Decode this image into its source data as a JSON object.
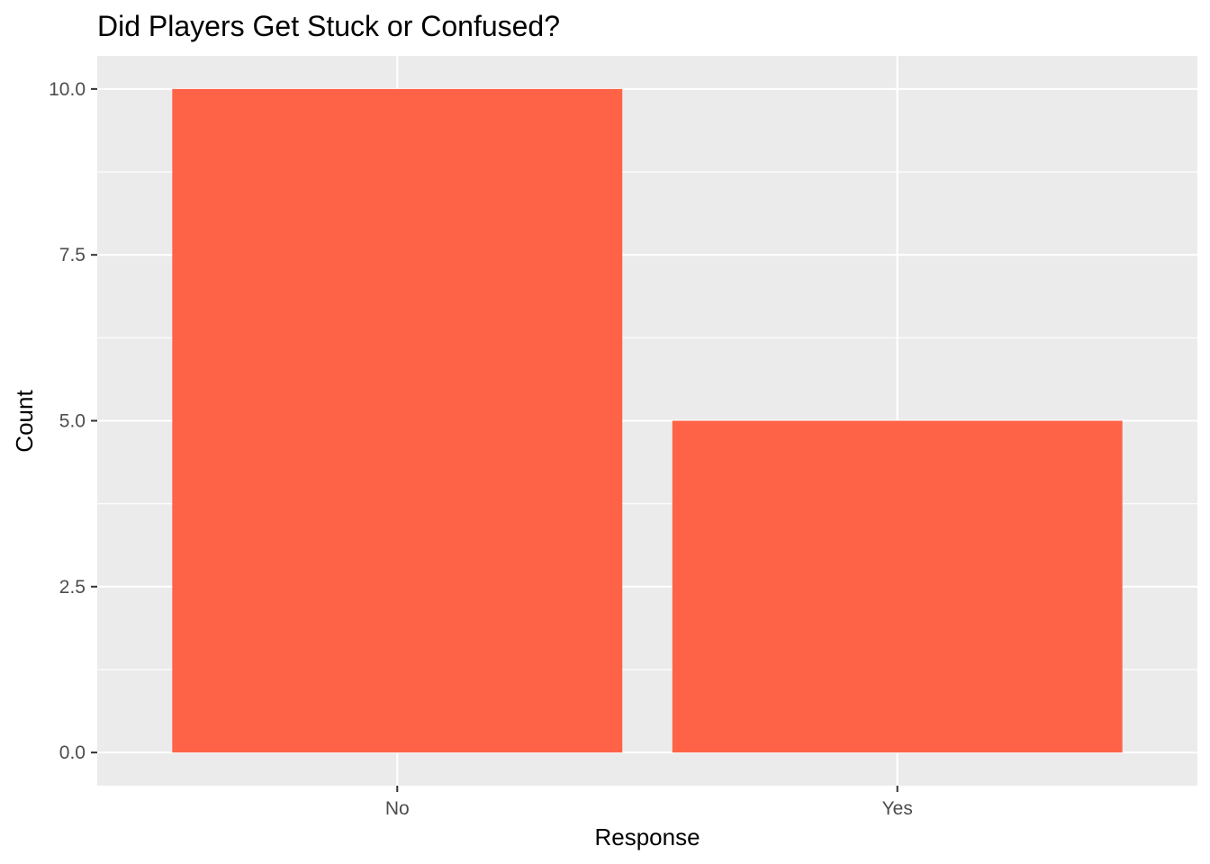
{
  "chart_data": {
    "type": "bar",
    "title": "Did Players Get Stuck or Confused?",
    "xlabel": "Response",
    "ylabel": "Count",
    "categories": [
      "No",
      "Yes"
    ],
    "values": [
      10,
      5
    ],
    "ylim": [
      -0.5,
      10.5
    ],
    "yticks": [
      0,
      2.5,
      5,
      7.5,
      10
    ],
    "ytick_labels": [
      "0.0",
      "2.5",
      "5.0",
      "7.5",
      "10.0"
    ],
    "grid": true,
    "legend": "none",
    "colors": {
      "bar": "#FF6347",
      "panel_background": "#EBEBEB",
      "grid_line": "#FFFFFF",
      "tick_text": "#4D4D4D",
      "tick_mark": "#333333"
    }
  }
}
